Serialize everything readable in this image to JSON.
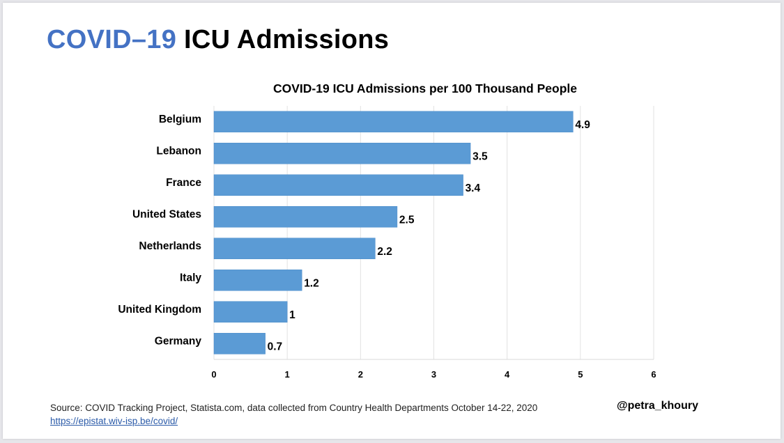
{
  "slide": {
    "title_accent": "COVID–19",
    "title_rest": "ICU Admissions",
    "source_text": "Source: COVID Tracking Project, Statista.com, data collected from Country Health Departments October 14-22, 2020",
    "source_link": "https://epistat.wiv-isp.be/covid/",
    "handle": "@petra_khoury",
    "colors": {
      "accent": "#4472c4",
      "bar": "#5b9bd5"
    }
  },
  "chart_data": {
    "type": "bar",
    "orientation": "horizontal",
    "title": "COVID-19 ICU Admissions per 100 Thousand People",
    "xlabel": "",
    "ylabel": "",
    "categories": [
      "Belgium",
      "Lebanon",
      "France",
      "United States",
      "Netherlands",
      "Italy",
      "United Kingdom",
      "Germany"
    ],
    "values": [
      4.9,
      3.5,
      3.4,
      2.5,
      2.2,
      1.2,
      1,
      0.7
    ],
    "value_labels": [
      "4.9",
      "3.5",
      "3.4",
      "2.5",
      "2.2",
      "1.2",
      "1",
      "0.7"
    ],
    "xlim": [
      0,
      6
    ],
    "xticks": [
      "0",
      "1",
      "2",
      "3",
      "4",
      "5",
      "6"
    ],
    "grid": true,
    "legend": "none"
  }
}
